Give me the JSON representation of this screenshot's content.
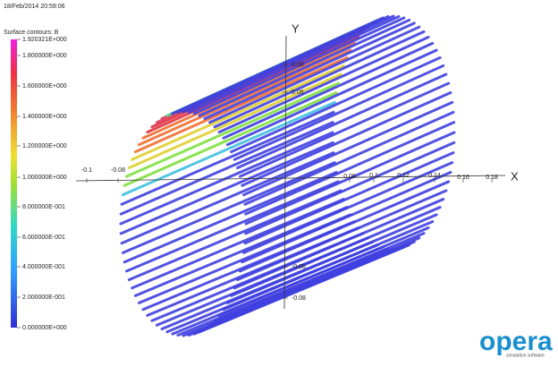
{
  "header": {
    "timestamp": "18/Feb/2014 20:59:06"
  },
  "legend": {
    "title": "Surface contours: B",
    "labels": [
      "1.920321E+000",
      "1.800000E+000",
      "1.600000E+000",
      "1.400000E+000",
      "1.200000E+000",
      "1.000000E+000",
      "8.000000E-001",
      "6.000000E-001",
      "4.000000E-001",
      "2.000000E-001",
      "0.000000E+000"
    ]
  },
  "axes": {
    "x": {
      "label": "X",
      "ticks": [
        "-0.1",
        "-0.08",
        "0.08",
        "0.1",
        "0.12",
        "0.14",
        "0.16",
        "0.18"
      ]
    },
    "y": {
      "label": "Y",
      "ticks": [
        "0.08",
        "0.06",
        "-0.06",
        "-0.08"
      ]
    }
  },
  "logo": {
    "text": "opera",
    "subtitle": "simulation software"
  }
}
